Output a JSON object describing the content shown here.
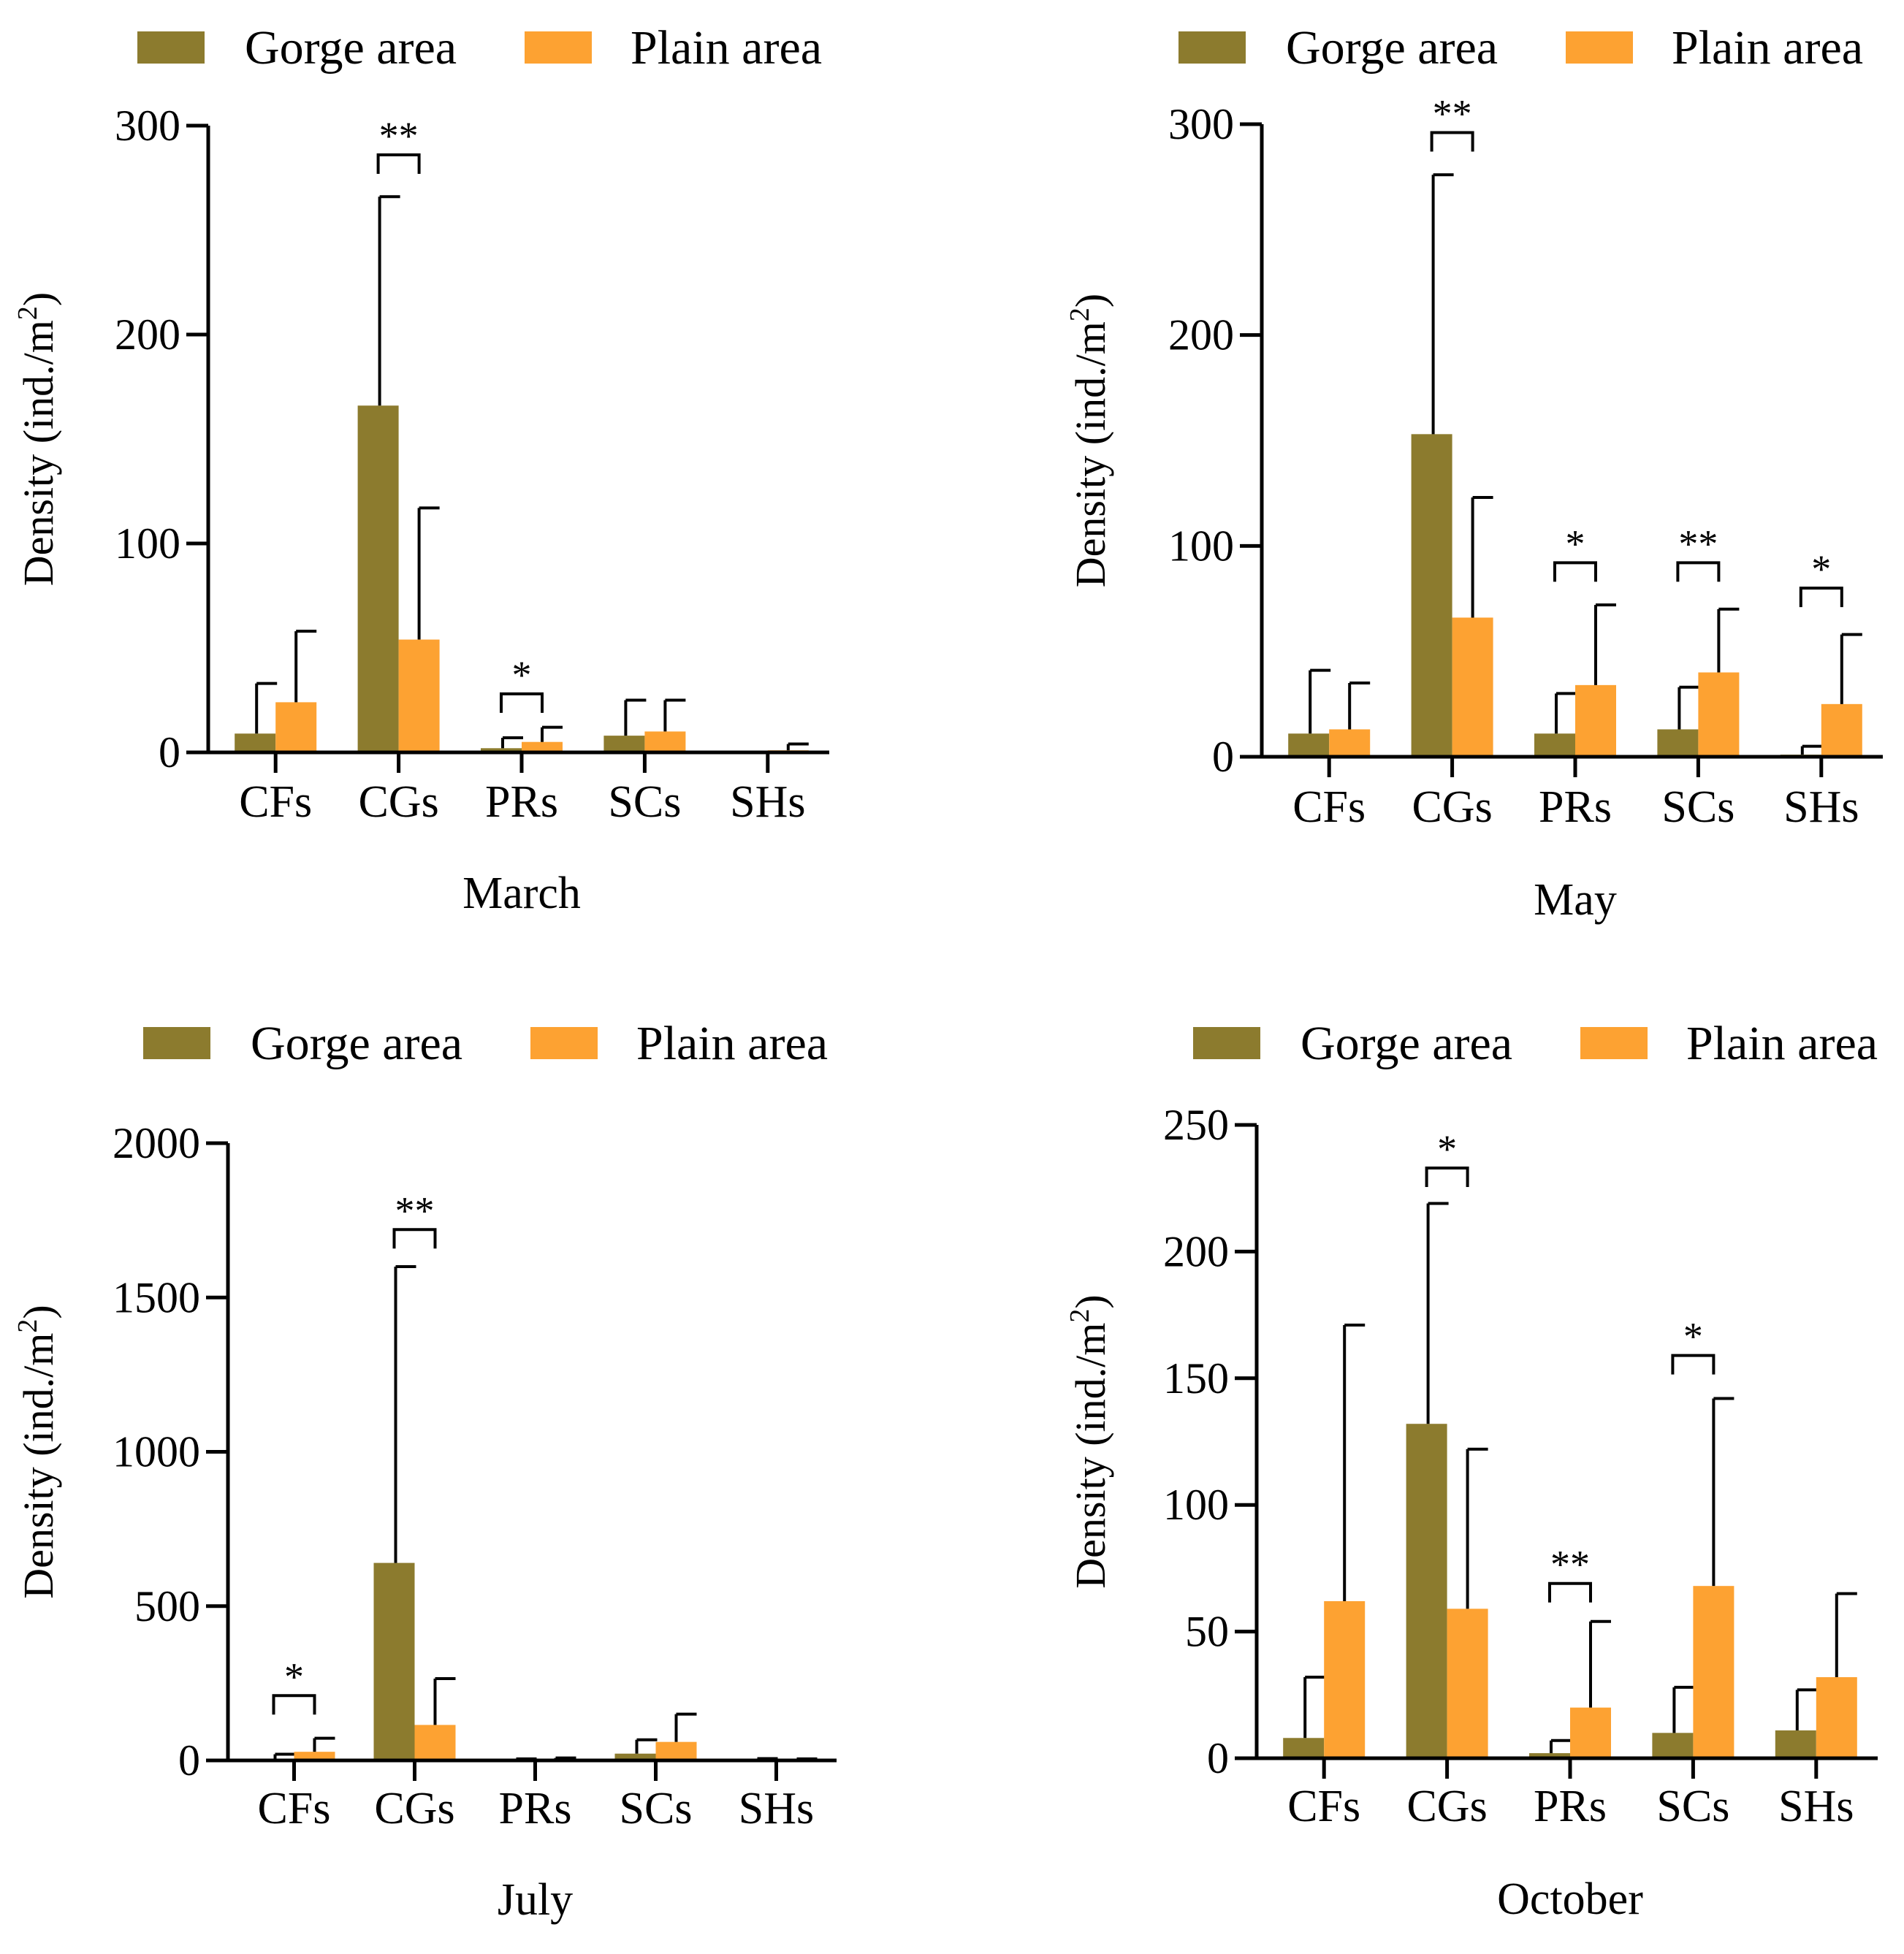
{
  "legend": {
    "gorge_label": "Gorge area",
    "plain_label": "Plain area"
  },
  "colors": {
    "gorge": "#8c7b2e",
    "plain": "#fda232",
    "axis": "#000000"
  },
  "chart_data": [
    {
      "type": "bar",
      "title": "March",
      "xlabel": "March",
      "ylabel": "Density (ind./m",
      "ylabel_sup": "2",
      "ylabel_close": ")",
      "categories": [
        "CFs",
        "CGs",
        "PRs",
        "SCs",
        "SHs"
      ],
      "ylim": [
        0,
        300
      ],
      "yticks": [
        0,
        100,
        200,
        300
      ],
      "series": [
        {
          "name": "Gorge area",
          "values": [
            9,
            166,
            2,
            8,
            0
          ],
          "errors": [
            24,
            100,
            5,
            17,
            0
          ]
        },
        {
          "name": "Plain area",
          "values": [
            24,
            54,
            5,
            10,
            1
          ],
          "errors": [
            34,
            63,
            7,
            15,
            3
          ]
        }
      ],
      "significance": [
        {
          "category": "CGs",
          "label": "**",
          "y": 286
        },
        {
          "category": "PRs",
          "label": "*",
          "y": 28
        }
      ]
    },
    {
      "type": "bar",
      "title": "May",
      "xlabel": "May",
      "ylabel": "Density (ind./m",
      "ylabel_sup": "2",
      "ylabel_close": ")",
      "categories": [
        "CFs",
        "CGs",
        "PRs",
        "SCs",
        "SHs"
      ],
      "ylim": [
        0,
        300
      ],
      "yticks": [
        0,
        100,
        200,
        300
      ],
      "series": [
        {
          "name": "Gorge area",
          "values": [
            11,
            153,
            11,
            13,
            1
          ],
          "errors": [
            30,
            123,
            19,
            20,
            4
          ]
        },
        {
          "name": "Plain area",
          "values": [
            13,
            66,
            34,
            40,
            25
          ],
          "errors": [
            22,
            57,
            38,
            30,
            33
          ]
        }
      ],
      "significance": [
        {
          "category": "CGs",
          "label": "**",
          "y": 296
        },
        {
          "category": "PRs",
          "label": "*",
          "y": 92
        },
        {
          "category": "SCs",
          "label": "**",
          "y": 92
        },
        {
          "category": "SHs",
          "label": "*",
          "y": 80
        }
      ]
    },
    {
      "type": "bar",
      "title": "July",
      "xlabel": "July",
      "ylabel": "Density (ind./m",
      "ylabel_sup": "2",
      "ylabel_close": ")",
      "categories": [
        "CFs",
        "CGs",
        "PRs",
        "SCs",
        "SHs"
      ],
      "ylim": [
        0,
        2000
      ],
      "yticks": [
        0,
        500,
        1000,
        1500,
        2000
      ],
      "series": [
        {
          "name": "Gorge area",
          "values": [
            5,
            640,
            2,
            22,
            3
          ],
          "errors": [
            15,
            960,
            3,
            45,
            3
          ]
        },
        {
          "name": "Plain area",
          "values": [
            28,
            115,
            3,
            60,
            2
          ],
          "errors": [
            44,
            150,
            5,
            90,
            3
          ]
        }
      ],
      "significance": [
        {
          "category": "CFs",
          "label": "*",
          "y": 210
        },
        {
          "category": "CGs",
          "label": "**",
          "y": 1720
        }
      ]
    },
    {
      "type": "bar",
      "title": "October",
      "xlabel": "October",
      "ylabel": "Density (ind./m",
      "ylabel_sup": "2",
      "ylabel_close": ")",
      "categories": [
        "CFs",
        "CGs",
        "PRs",
        "SCs",
        "SHs"
      ],
      "ylim": [
        0,
        250
      ],
      "yticks": [
        0,
        50,
        100,
        150,
        200,
        250
      ],
      "series": [
        {
          "name": "Gorge area",
          "values": [
            8,
            132,
            2,
            10,
            11
          ],
          "errors": [
            24,
            87,
            5,
            18,
            16
          ]
        },
        {
          "name": "Plain area",
          "values": [
            62,
            59,
            20,
            68,
            32
          ],
          "errors": [
            109,
            63,
            34,
            74,
            33
          ]
        }
      ],
      "significance": [
        {
          "category": "CGs",
          "label": "*",
          "y": 233
        },
        {
          "category": "PRs",
          "label": "**",
          "y": 69
        },
        {
          "category": "SCs",
          "label": "*",
          "y": 159
        }
      ]
    }
  ]
}
